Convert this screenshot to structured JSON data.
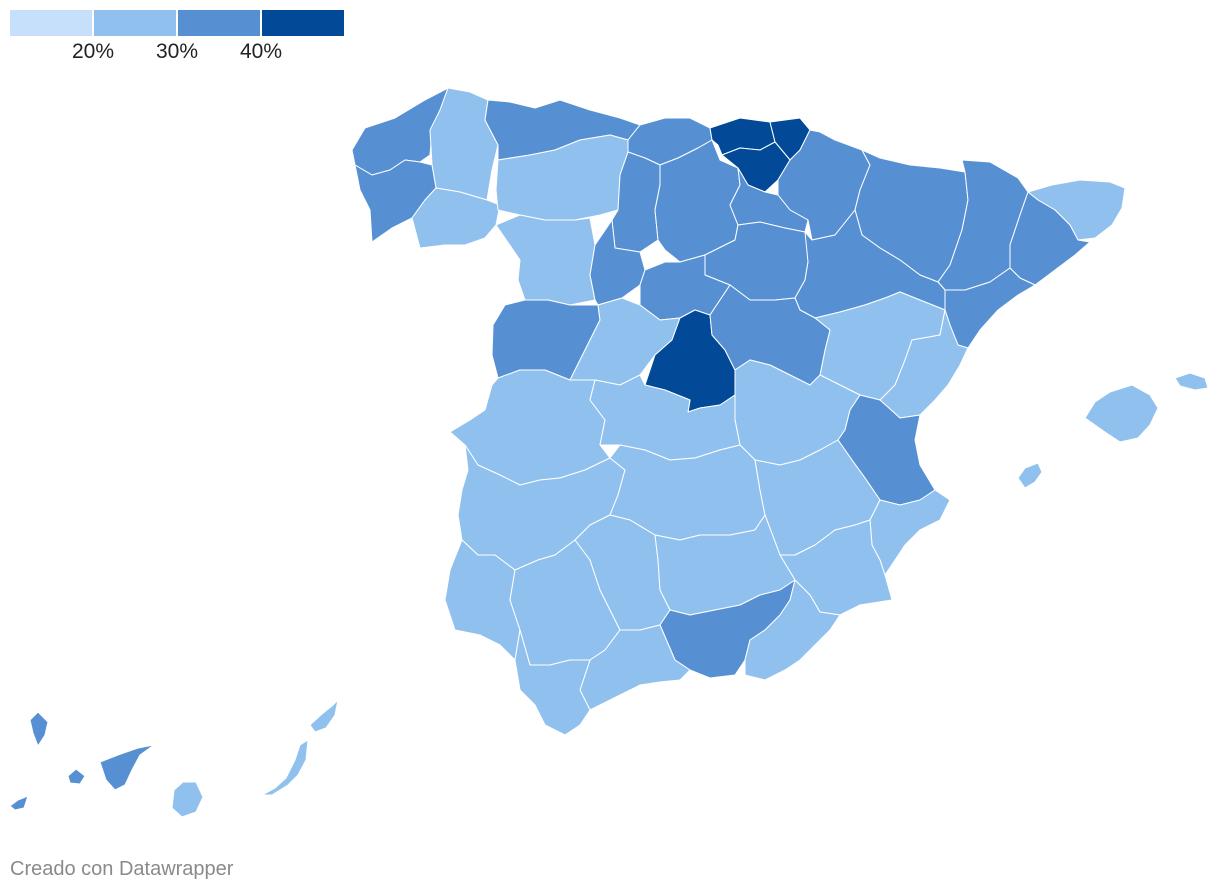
{
  "legend": {
    "colors": [
      "#c6e0fb",
      "#90c1ee",
      "#5690d3",
      "#024a98"
    ],
    "labels": [
      "20%",
      "30%",
      "40%"
    ]
  },
  "credit": "Creado con Datawrapper",
  "map_data": {
    "type": "choropleth",
    "region": "Spain (provinces)",
    "bins": [
      "<20%",
      "20–30%",
      "30–40%",
      ">40%"
    ],
    "regions": [
      {
        "name": "A Coruña",
        "bin": 2
      },
      {
        "name": "Lugo",
        "bin": 1
      },
      {
        "name": "Pontevedra",
        "bin": 2
      },
      {
        "name": "Ourense",
        "bin": 1
      },
      {
        "name": "Asturias",
        "bin": 2
      },
      {
        "name": "Cantabria",
        "bin": 2
      },
      {
        "name": "León",
        "bin": 1
      },
      {
        "name": "Zamora",
        "bin": 1
      },
      {
        "name": "Palencia",
        "bin": 2
      },
      {
        "name": "Burgos",
        "bin": 2
      },
      {
        "name": "Bizkaia",
        "bin": 3
      },
      {
        "name": "Gipuzkoa",
        "bin": 3
      },
      {
        "name": "Araba/Álava",
        "bin": 3
      },
      {
        "name": "Navarra",
        "bin": 2
      },
      {
        "name": "La Rioja",
        "bin": 2
      },
      {
        "name": "Huesca",
        "bin": 2
      },
      {
        "name": "Lleida",
        "bin": 2
      },
      {
        "name": "Girona",
        "bin": 1
      },
      {
        "name": "Barcelona",
        "bin": 2
      },
      {
        "name": "Tarragona",
        "bin": 2
      },
      {
        "name": "Valladolid",
        "bin": 2
      },
      {
        "name": "Soria",
        "bin": 2
      },
      {
        "name": "Zaragoza",
        "bin": 2
      },
      {
        "name": "Teruel",
        "bin": 1
      },
      {
        "name": "Castellón",
        "bin": 1
      },
      {
        "name": "Salamanca",
        "bin": 2
      },
      {
        "name": "Segovia",
        "bin": 2
      },
      {
        "name": "Ávila",
        "bin": 1
      },
      {
        "name": "Madrid",
        "bin": 3
      },
      {
        "name": "Guadalajara",
        "bin": 2
      },
      {
        "name": "Cuenca",
        "bin": 1
      },
      {
        "name": "Valencia",
        "bin": 2
      },
      {
        "name": "Cáceres",
        "bin": 1
      },
      {
        "name": "Toledo",
        "bin": 1
      },
      {
        "name": "Badajoz",
        "bin": 1
      },
      {
        "name": "Ciudad Real",
        "bin": 1
      },
      {
        "name": "Albacete",
        "bin": 1
      },
      {
        "name": "Alicante",
        "bin": 1
      },
      {
        "name": "Murcia",
        "bin": 1
      },
      {
        "name": "Huelva",
        "bin": 1
      },
      {
        "name": "Sevilla",
        "bin": 1
      },
      {
        "name": "Córdoba",
        "bin": 1
      },
      {
        "name": "Jaén",
        "bin": 1
      },
      {
        "name": "Granada",
        "bin": 2
      },
      {
        "name": "Almería",
        "bin": 1
      },
      {
        "name": "Málaga",
        "bin": 1
      },
      {
        "name": "Cádiz",
        "bin": 1
      },
      {
        "name": "Mallorca",
        "bin": 1
      },
      {
        "name": "Menorca",
        "bin": 1
      },
      {
        "name": "Ibiza",
        "bin": 1
      },
      {
        "name": "La Palma",
        "bin": 2
      },
      {
        "name": "La Gomera",
        "bin": 2
      },
      {
        "name": "El Hierro",
        "bin": 2
      },
      {
        "name": "Tenerife",
        "bin": 2
      },
      {
        "name": "Gran Canaria",
        "bin": 1
      },
      {
        "name": "Fuerteventura",
        "bin": 1
      },
      {
        "name": "Lanzarote",
        "bin": 1
      }
    ]
  }
}
